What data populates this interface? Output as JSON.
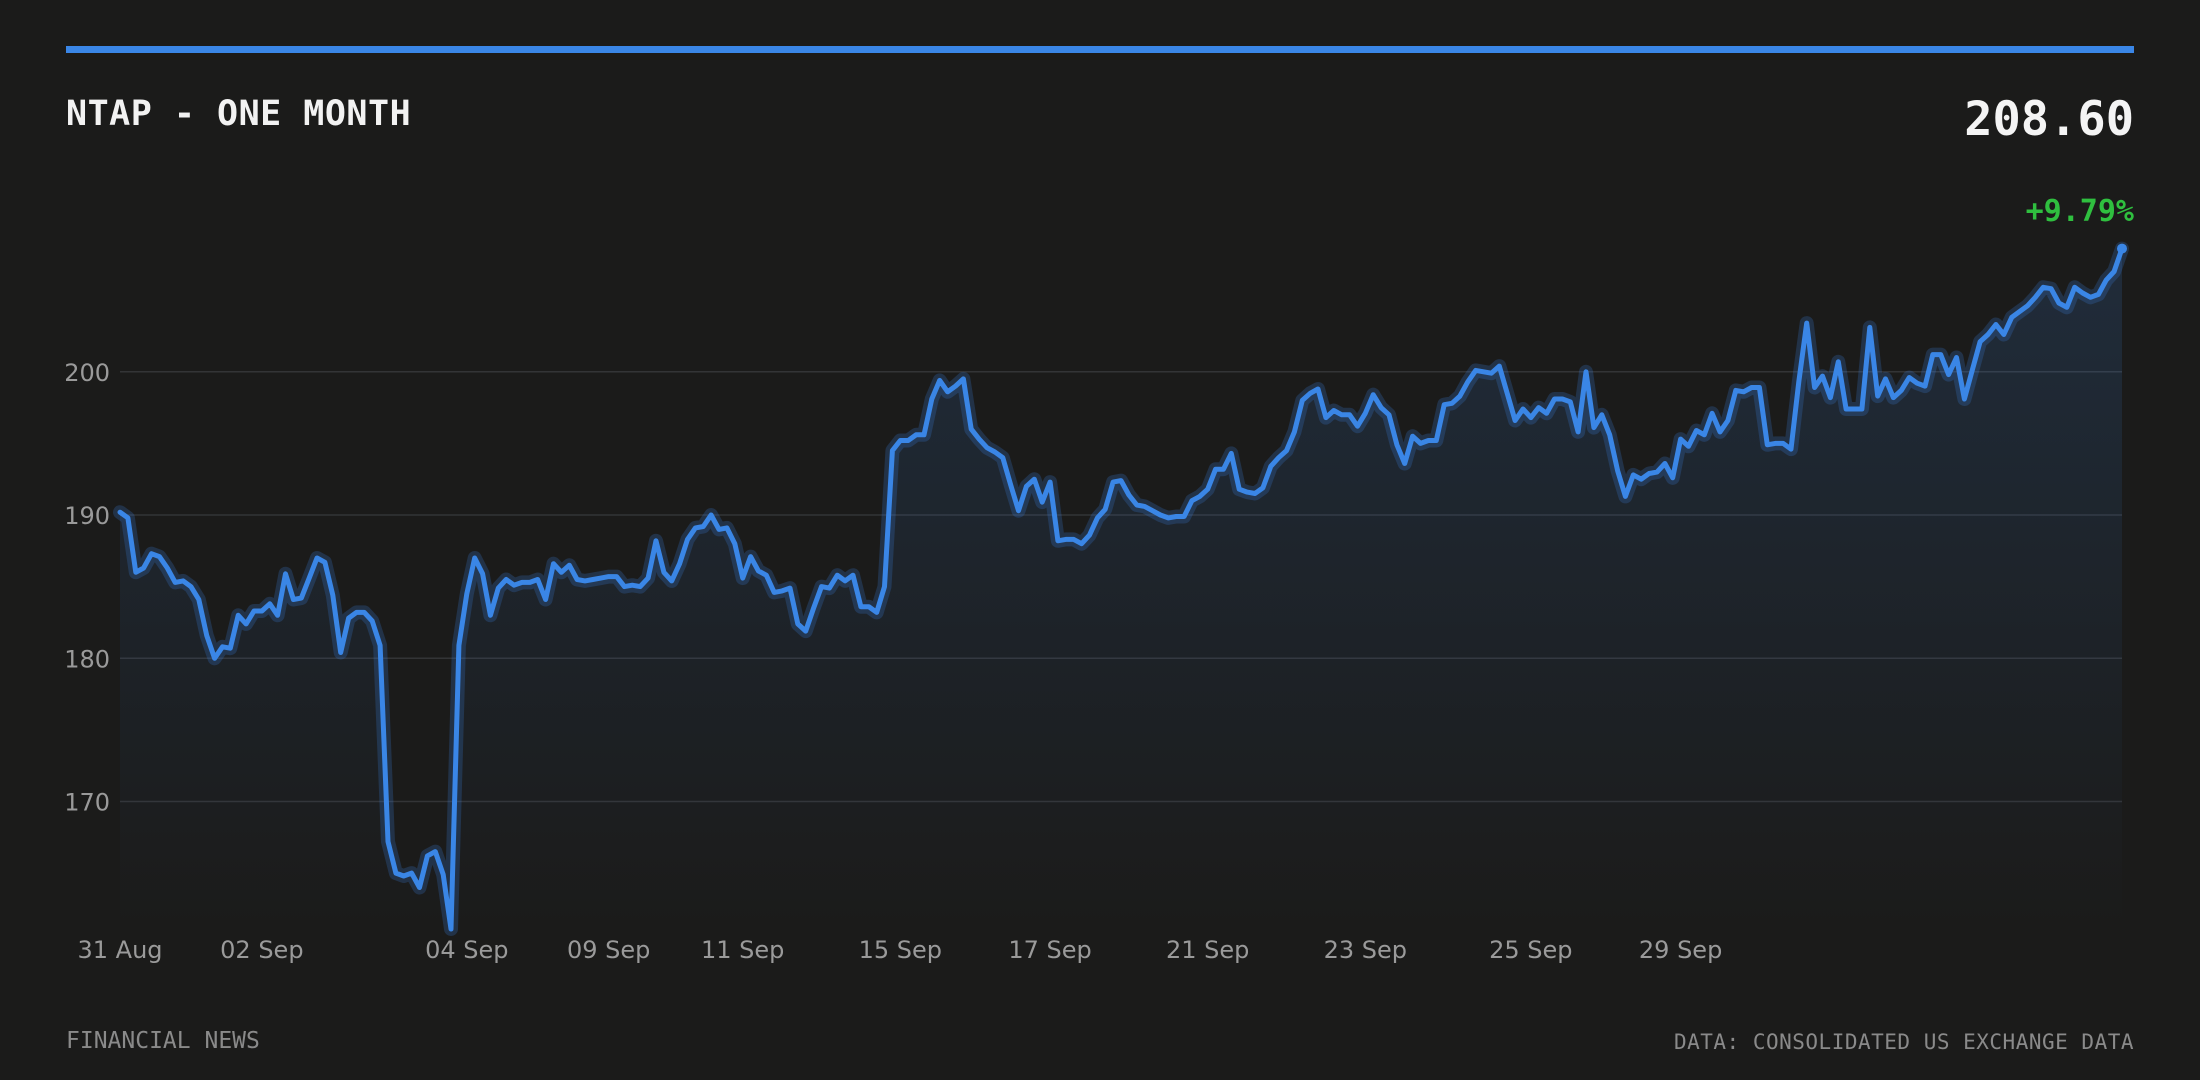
{
  "header": {
    "title": "NTAP - ONE MONTH",
    "price": "208.60",
    "change": "+9.79%"
  },
  "footer": {
    "source_left": "FINANCIAL NEWS",
    "source_right": "DATA: CONSOLIDATED US EXCHANGE DATA"
  },
  "colors": {
    "background": "#1b1b1a",
    "accent": "#3a86e6",
    "positive": "#2fbf3f",
    "grid": "#333436",
    "axis_text": "#9a9a9a"
  },
  "chart_data": {
    "type": "area",
    "title": "NTAP - ONE MONTH",
    "xlabel": "",
    "ylabel": "",
    "ylim": [
      161.1,
      209.2
    ],
    "grid": true,
    "y_ticks": [
      170,
      180,
      190,
      200
    ],
    "x_tick_labels": [
      "31 Aug",
      "02 Sep",
      "04 Sep",
      "09 Sep",
      "11 Sep",
      "15 Sep",
      "17 Sep",
      "21 Sep",
      "23 Sep",
      "25 Sep",
      "29 Sep"
    ],
    "x_tick_indices": [
      0,
      18,
      44,
      62,
      79,
      99,
      118,
      138,
      158,
      179,
      198
    ],
    "series": [
      {
        "values": [
          190.2,
          189.8,
          186.0,
          186.3,
          187.3,
          187.1,
          186.3,
          185.3,
          185.4,
          185.0,
          184.1,
          181.6,
          180.0,
          180.8,
          180.7,
          183.0,
          182.4,
          183.3,
          183.3,
          183.8,
          183.0,
          185.9,
          184.1,
          184.2,
          185.6,
          187.0,
          186.7,
          184.4,
          180.4,
          182.8,
          183.2,
          183.2,
          182.6,
          180.9,
          167.2,
          165.0,
          164.8,
          165.0,
          164.0,
          166.2,
          166.5,
          164.9,
          161.1,
          180.9,
          184.5,
          187.0,
          185.9,
          183.0,
          184.9,
          185.5,
          185.1,
          185.3,
          185.3,
          185.5,
          184.1,
          186.6,
          186.0,
          186.5,
          185.5,
          185.4,
          185.5,
          185.6,
          185.7,
          185.7,
          185.0,
          185.1,
          185.0,
          185.6,
          188.2,
          186.0,
          185.4,
          186.6,
          188.3,
          189.1,
          189.2,
          190.0,
          189.0,
          189.1,
          188.0,
          185.6,
          187.1,
          186.1,
          185.8,
          184.6,
          184.7,
          184.9,
          182.4,
          181.9,
          183.5,
          185.0,
          184.9,
          185.8,
          185.4,
          185.8,
          183.6,
          183.6,
          183.2,
          185.0,
          194.5,
          195.2,
          195.2,
          195.6,
          195.6,
          198.1,
          199.4,
          198.6,
          199.0,
          199.5,
          196.0,
          195.3,
          194.7,
          194.4,
          194.0,
          192.1,
          190.3,
          192.0,
          192.5,
          190.9,
          192.3,
          188.2,
          188.3,
          188.3,
          188.0,
          188.6,
          189.8,
          190.4,
          192.3,
          192.4,
          191.4,
          190.7,
          190.6,
          190.3,
          190.0,
          189.8,
          189.9,
          189.9,
          191.0,
          191.3,
          191.8,
          193.2,
          193.2,
          194.3,
          191.8,
          191.6,
          191.5,
          191.9,
          193.4,
          194.0,
          194.5,
          195.8,
          198.0,
          198.5,
          198.8,
          196.8,
          197.3,
          197.0,
          197.0,
          196.2,
          197.1,
          198.4,
          197.5,
          197.0,
          194.9,
          193.6,
          195.5,
          195.0,
          195.2,
          195.2,
          197.7,
          197.8,
          198.3,
          199.3,
          200.1,
          200.0,
          199.9,
          200.4,
          198.5,
          196.6,
          197.4,
          196.8,
          197.5,
          197.1,
          198.1,
          198.1,
          197.9,
          195.8,
          200.0,
          196.1,
          197.0,
          195.6,
          193.1,
          191.3,
          192.8,
          192.5,
          192.9,
          193.0,
          193.6,
          192.6,
          195.3,
          194.8,
          195.9,
          195.6,
          197.1,
          195.8,
          196.6,
          198.7,
          198.6,
          198.9,
          198.9,
          194.9,
          195.0,
          195.0,
          194.6,
          199.3,
          203.4,
          198.9,
          199.7,
          198.2,
          200.7,
          197.4,
          197.4,
          197.4,
          203.1,
          198.3,
          199.5,
          198.2,
          198.7,
          199.6,
          199.2,
          199.0,
          201.2,
          201.2,
          199.8,
          201.0,
          198.1,
          200.1,
          202.1,
          202.6,
          203.3,
          202.6,
          203.8,
          204.2,
          204.6,
          205.2,
          205.9,
          205.8,
          204.8,
          204.5,
          205.9,
          205.5,
          205.2,
          205.4,
          206.4,
          207.0,
          208.6
        ]
      }
    ]
  }
}
